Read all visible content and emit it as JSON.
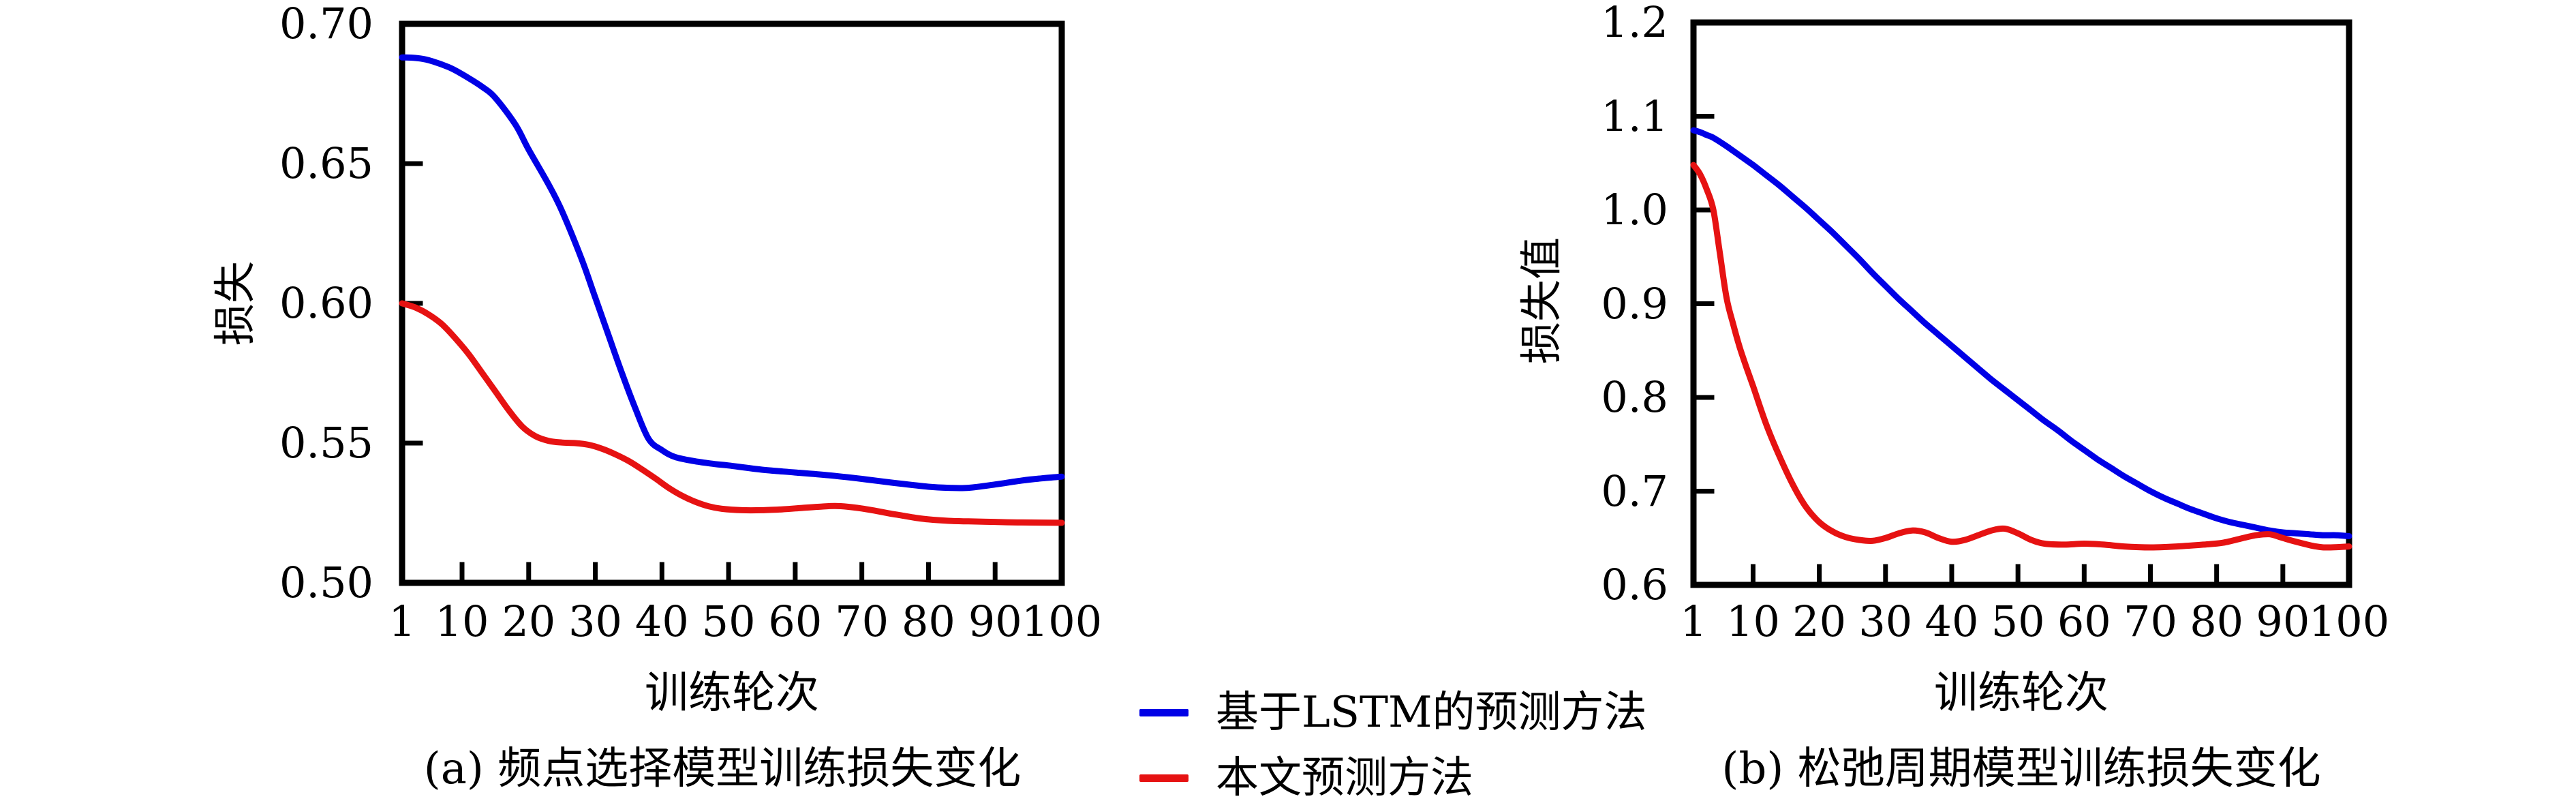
{
  "figure": {
    "background": "#ffffff"
  },
  "colors": {
    "axis": "#000000",
    "lstm_line": "#0000e6",
    "proposed_line": "#e61212"
  },
  "legend": {
    "items": [
      {
        "id": "lstm",
        "label": "基于LSTM的预测方法",
        "color": "#0000e6"
      },
      {
        "id": "proposed",
        "label": "本文预测方法",
        "color": "#e61212"
      }
    ]
  },
  "chart_data": [
    {
      "id": "a",
      "type": "line",
      "title": "(a) 频点选择模型训练损失变化",
      "xlabel": "训练轮次",
      "ylabel": "损失",
      "xlim": [
        1,
        100
      ],
      "ylim": [
        0.5,
        0.7
      ],
      "grid": false,
      "legend_position": "shared-bottom-center",
      "xticks": [
        1,
        10,
        20,
        30,
        40,
        50,
        60,
        70,
        80,
        90,
        100
      ],
      "xtick_labels": [
        "1",
        "10",
        "20",
        "30",
        "40",
        "50",
        "60",
        "70",
        "80",
        "90",
        "100"
      ],
      "yticks": [
        0.7,
        0.65,
        0.6,
        0.55,
        0.5
      ],
      "ytick_labels": [
        "0.70",
        "0.65",
        "0.60",
        "0.55",
        "0.50"
      ],
      "series": [
        {
          "name": "基于LSTM的预测方法",
          "color": "#0000e6",
          "points": [
            [
              1,
              0.688
            ],
            [
              3,
              0.6878
            ],
            [
              5,
              0.687
            ],
            [
              8,
              0.6845
            ],
            [
              10,
              0.682
            ],
            [
              13,
              0.6775
            ],
            [
              15,
              0.6735
            ],
            [
              18,
              0.664
            ],
            [
              20,
              0.655
            ],
            [
              23,
              0.6425
            ],
            [
              25,
              0.633
            ],
            [
              28,
              0.6155
            ],
            [
              30,
              0.602
            ],
            [
              32,
              0.5885
            ],
            [
              34,
              0.575
            ],
            [
              36,
              0.5625
            ],
            [
              38,
              0.5515
            ],
            [
              40,
              0.5475
            ],
            [
              42,
              0.545
            ],
            [
              45,
              0.5435
            ],
            [
              48,
              0.5425
            ],
            [
              50,
              0.542
            ],
            [
              55,
              0.5405
            ],
            [
              60,
              0.5395
            ],
            [
              65,
              0.5385
            ],
            [
              70,
              0.5372
            ],
            [
              75,
              0.5357
            ],
            [
              80,
              0.5344
            ],
            [
              83,
              0.534
            ],
            [
              86,
              0.534
            ],
            [
              90,
              0.5352
            ],
            [
              94,
              0.5366
            ],
            [
              97,
              0.5374
            ],
            [
              100,
              0.538
            ]
          ]
        },
        {
          "name": "本文预测方法",
          "color": "#e61212",
          "points": [
            [
              1,
              0.6
            ],
            [
              3,
              0.5985
            ],
            [
              5,
              0.596
            ],
            [
              7,
              0.5925
            ],
            [
              9,
              0.5875
            ],
            [
              11,
              0.5818
            ],
            [
              13,
              0.5752
            ],
            [
              15,
              0.5685
            ],
            [
              17,
              0.5618
            ],
            [
              19,
              0.556
            ],
            [
              21,
              0.5525
            ],
            [
              23,
              0.5508
            ],
            [
              25,
              0.5502
            ],
            [
              27,
              0.55
            ],
            [
              29,
              0.5494
            ],
            [
              31,
              0.548
            ],
            [
              33,
              0.546
            ],
            [
              35,
              0.5436
            ],
            [
              37,
              0.5406
            ],
            [
              39,
              0.5374
            ],
            [
              41,
              0.534
            ],
            [
              43,
              0.5312
            ],
            [
              45,
              0.529
            ],
            [
              47,
              0.5274
            ],
            [
              49,
              0.5265
            ],
            [
              52,
              0.526
            ],
            [
              55,
              0.526
            ],
            [
              58,
              0.5263
            ],
            [
              61,
              0.5268
            ],
            [
              64,
              0.5273
            ],
            [
              66,
              0.5275
            ],
            [
              68,
              0.5272
            ],
            [
              70,
              0.5266
            ],
            [
              72,
              0.5258
            ],
            [
              74,
              0.5249
            ],
            [
              76,
              0.5241
            ],
            [
              78,
              0.5233
            ],
            [
              80,
              0.5227
            ],
            [
              83,
              0.5222
            ],
            [
              86,
              0.522
            ],
            [
              90,
              0.5218
            ],
            [
              94,
              0.5216
            ],
            [
              100,
              0.5215
            ]
          ]
        }
      ]
    },
    {
      "id": "b",
      "type": "line",
      "title": "(b) 松弛周期模型训练损失变化",
      "xlabel": "训练轮次",
      "ylabel": "损失值",
      "xlim": [
        1,
        100
      ],
      "ylim": [
        0.6,
        1.2
      ],
      "grid": false,
      "legend_position": "shared-bottom-center",
      "xticks": [
        1,
        10,
        20,
        30,
        40,
        50,
        60,
        70,
        80,
        90,
        100
      ],
      "xtick_labels": [
        "1",
        "10",
        "20",
        "30",
        "40",
        "50",
        "60",
        "70",
        "80",
        "90",
        "100"
      ],
      "yticks": [
        1.2,
        1.1,
        1.0,
        0.9,
        0.8,
        0.7,
        0.6
      ],
      "ytick_labels": [
        "1.2",
        "1.1",
        "1.0",
        "0.9",
        "0.8",
        "0.7",
        "0.6"
      ],
      "series": [
        {
          "name": "基于LSTM的预测方法",
          "color": "#0000e6",
          "points": [
            [
              1,
              1.085
            ],
            [
              2,
              1.083
            ],
            [
              3,
              1.08
            ],
            [
              4,
              1.077
            ],
            [
              6,
              1.068
            ],
            [
              8,
              1.058
            ],
            [
              10,
              1.048
            ],
            [
              12,
              1.037
            ],
            [
              14,
              1.026
            ],
            [
              16,
              1.014
            ],
            [
              18,
              1.002
            ],
            [
              20,
              0.989
            ],
            [
              22,
              0.976
            ],
            [
              24,
              0.962
            ],
            [
              26,
              0.948
            ],
            [
              28,
              0.933
            ],
            [
              30,
              0.919
            ],
            [
              32,
              0.905
            ],
            [
              34,
              0.892
            ],
            [
              36,
              0.879
            ],
            [
              38,
              0.867
            ],
            [
              40,
              0.855
            ],
            [
              42,
              0.843
            ],
            [
              44,
              0.831
            ],
            [
              46,
              0.819
            ],
            [
              48,
              0.808
            ],
            [
              50,
              0.797
            ],
            [
              52,
              0.786
            ],
            [
              54,
              0.775
            ],
            [
              56,
              0.765
            ],
            [
              58,
              0.754
            ],
            [
              60,
              0.744
            ],
            [
              62,
              0.734
            ],
            [
              64,
              0.725
            ],
            [
              66,
              0.716
            ],
            [
              68,
              0.708
            ],
            [
              70,
              0.7
            ],
            [
              72,
              0.693
            ],
            [
              74,
              0.687
            ],
            [
              76,
              0.681
            ],
            [
              78,
              0.676
            ],
            [
              80,
              0.671
            ],
            [
              82,
              0.667
            ],
            [
              84,
              0.664
            ],
            [
              86,
              0.661
            ],
            [
              88,
              0.658
            ],
            [
              90,
              0.656
            ],
            [
              92,
              0.655
            ],
            [
              94,
              0.654
            ],
            [
              96,
              0.653
            ],
            [
              98,
              0.653
            ],
            [
              100,
              0.652
            ]
          ]
        },
        {
          "name": "本文预测方法",
          "color": "#e61212",
          "points": [
            [
              1,
              1.048
            ],
            [
              2,
              1.038
            ],
            [
              3,
              1.022
            ],
            [
              4,
              1.0
            ],
            [
              5,
              0.953
            ],
            [
              6,
              0.906
            ],
            [
              7,
              0.878
            ],
            [
              8,
              0.853
            ],
            [
              9,
              0.832
            ],
            [
              10,
              0.812
            ],
            [
              12,
              0.771
            ],
            [
              14,
              0.737
            ],
            [
              16,
              0.707
            ],
            [
              18,
              0.683
            ],
            [
              20,
              0.667
            ],
            [
              22,
              0.657
            ],
            [
              24,
              0.651
            ],
            [
              26,
              0.648
            ],
            [
              28,
              0.647
            ],
            [
              30,
              0.65
            ],
            [
              32,
              0.655
            ],
            [
              34,
              0.658
            ],
            [
              36,
              0.656
            ],
            [
              38,
              0.65
            ],
            [
              40,
              0.646
            ],
            [
              42,
              0.648
            ],
            [
              44,
              0.653
            ],
            [
              46,
              0.658
            ],
            [
              48,
              0.66
            ],
            [
              50,
              0.655
            ],
            [
              52,
              0.648
            ],
            [
              54,
              0.644
            ],
            [
              57,
              0.643
            ],
            [
              60,
              0.644
            ],
            [
              63,
              0.643
            ],
            [
              66,
              0.641
            ],
            [
              70,
              0.64
            ],
            [
              74,
              0.641
            ],
            [
              78,
              0.643
            ],
            [
              81,
              0.645
            ],
            [
              84,
              0.65
            ],
            [
              86,
              0.653
            ],
            [
              88,
              0.654
            ],
            [
              90,
              0.65
            ],
            [
              92,
              0.646
            ],
            [
              95,
              0.641
            ],
            [
              97,
              0.64
            ],
            [
              100,
              0.641
            ]
          ]
        }
      ]
    }
  ]
}
